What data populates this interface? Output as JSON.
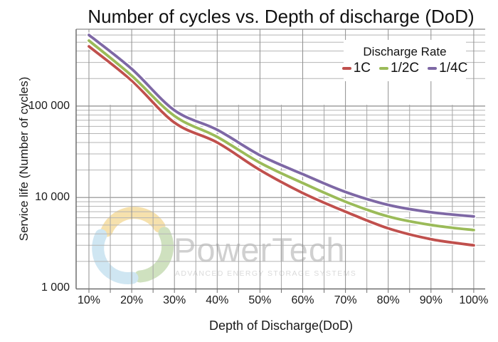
{
  "title": "Number of cycles vs. Depth of discharge (DoD)",
  "x_axis": {
    "label": "Depth of Discharge(DoD)",
    "ticks": [
      "10%",
      "20%",
      "30%",
      "40%",
      "50%",
      "60%",
      "70%",
      "80%",
      "90%",
      "100%"
    ]
  },
  "y_axis": {
    "label": "Service life (Number of cycles)",
    "ticks": [
      "1 000",
      "10 000",
      "100 000"
    ]
  },
  "legend": {
    "title": "Discharge Rate",
    "entries": [
      {
        "label": "1C",
        "color": "#C0504D"
      },
      {
        "label": "1/2C",
        "color": "#9BBB59"
      },
      {
        "label": "1/4C",
        "color": "#7E68A5"
      }
    ]
  },
  "watermark": {
    "name": "PowerTech",
    "tagline": "ADVANCED ENERGY STORAGE SYSTEMS",
    "logo_colors": {
      "yellow": "#EFC96B",
      "green": "#A9C98B",
      "blue": "#A8D2E8"
    },
    "text_color": "#ABABAB",
    "tagline_color": "#BDBDBD"
  },
  "colors": {
    "axis_line": "#6f6f6f",
    "grid_major": "#8c8c8c",
    "grid_minor": "#b5b5b5",
    "grid_vert_major": "#8f8f8f",
    "grid_vert_minor": "#a6a6a6",
    "casing": "#ffffff",
    "text": "#1a1a1a"
  },
  "chart_data": {
    "type": "line",
    "title": "Number of cycles vs. Depth of discharge (DoD)",
    "xlabel": "Depth of Discharge(DoD)",
    "ylabel": "Service life (Number of cycles)",
    "x_categories_percent": [
      10,
      20,
      30,
      40,
      50,
      60,
      70,
      80,
      90,
      100
    ],
    "y_scale": "log",
    "ylim": [
      1000,
      700000
    ],
    "grid": true,
    "legend_position": "top-right",
    "series": [
      {
        "name": "1C",
        "color": "#C0504D",
        "values": [
          450000,
          190000,
          66000,
          40000,
          20000,
          11200,
          7000,
          4600,
          3500,
          3000
        ]
      },
      {
        "name": "1/2C",
        "color": "#9BBB59",
        "values": [
          520000,
          215000,
          78000,
          46000,
          24000,
          14400,
          9000,
          6200,
          5000,
          4400
        ]
      },
      {
        "name": "1/4C",
        "color": "#7E68A5",
        "values": [
          600000,
          255000,
          90000,
          55000,
          29000,
          18000,
          11500,
          8300,
          6900,
          6200
        ]
      }
    ]
  }
}
